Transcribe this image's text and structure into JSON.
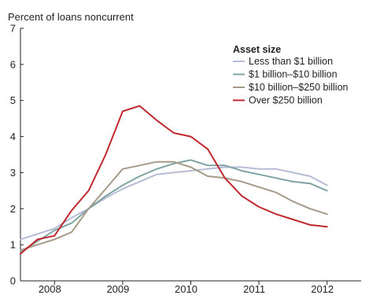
{
  "chart_data": {
    "type": "line",
    "title": "",
    "ylabel": "Percent of loans noncurrent",
    "xlabel": "",
    "ylim": [
      0,
      7
    ],
    "xlim": [
      2007.5,
      2012.5
    ],
    "yticks": [
      0,
      1,
      2,
      3,
      4,
      5,
      6,
      7
    ],
    "xtick_labels": [
      "2008",
      "2009",
      "2010",
      "2011",
      "2012"
    ],
    "legend": {
      "title": "Asset size",
      "placement": "top-right"
    },
    "series": [
      {
        "name": "Less than $1 billion",
        "color": "#b7bcd6",
        "x": [
          2007.5,
          2007.75,
          2008.0,
          2008.25,
          2008.5,
          2008.75,
          2009.0,
          2009.25,
          2009.5,
          2009.75,
          2010.0,
          2010.25,
          2010.5,
          2010.75,
          2011.0,
          2011.25,
          2011.5,
          2011.75,
          2012.0
        ],
        "values": [
          1.15,
          1.3,
          1.45,
          1.75,
          2.0,
          2.3,
          2.55,
          2.75,
          2.95,
          3.0,
          3.05,
          3.1,
          3.15,
          3.15,
          3.1,
          3.1,
          3.0,
          2.9,
          2.65
        ]
      },
      {
        "name": "$1 billion–$10 billion",
        "color": "#7fa3a3",
        "x": [
          2007.5,
          2007.75,
          2008.0,
          2008.25,
          2008.5,
          2008.75,
          2009.0,
          2009.25,
          2009.5,
          2009.75,
          2010.0,
          2010.25,
          2010.5,
          2010.75,
          2011.0,
          2011.25,
          2011.5,
          2011.75,
          2012.0
        ],
        "values": [
          0.8,
          1.1,
          1.4,
          1.6,
          2.0,
          2.35,
          2.65,
          2.9,
          3.1,
          3.25,
          3.35,
          3.2,
          3.2,
          3.05,
          2.95,
          2.85,
          2.75,
          2.7,
          2.5
        ]
      },
      {
        "name": "$10 billion–$250 billion",
        "color": "#a59a87",
        "x": [
          2007.5,
          2007.75,
          2008.0,
          2008.25,
          2008.5,
          2008.75,
          2009.0,
          2009.25,
          2009.5,
          2009.75,
          2010.0,
          2010.25,
          2010.5,
          2010.75,
          2011.0,
          2011.25,
          2011.5,
          2011.75,
          2012.0
        ],
        "values": [
          0.85,
          1.0,
          1.15,
          1.35,
          2.0,
          2.55,
          3.1,
          3.2,
          3.3,
          3.3,
          3.15,
          2.9,
          2.85,
          2.75,
          2.6,
          2.45,
          2.2,
          2.0,
          1.85
        ]
      },
      {
        "name": "Over $250 billion",
        "color": "#c0282e",
        "x": [
          2007.5,
          2007.75,
          2008.0,
          2008.25,
          2008.5,
          2008.75,
          2009.0,
          2009.25,
          2009.5,
          2009.75,
          2010.0,
          2010.25,
          2010.5,
          2010.75,
          2011.0,
          2011.25,
          2011.5,
          2011.75,
          2012.0
        ],
        "values": [
          0.75,
          1.15,
          1.25,
          1.95,
          2.5,
          3.5,
          4.7,
          4.85,
          4.45,
          4.1,
          4.0,
          3.65,
          2.85,
          2.35,
          2.05,
          1.85,
          1.7,
          1.55,
          1.5
        ]
      }
    ]
  }
}
